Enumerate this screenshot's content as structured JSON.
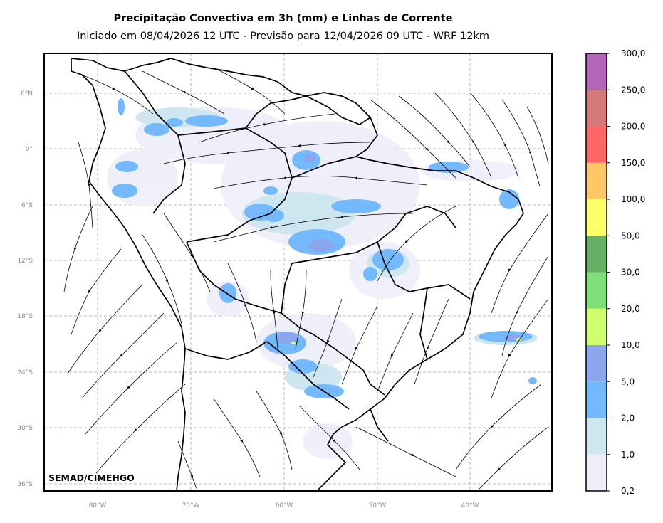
{
  "title": "Precipitação Convectiva em 3h (mm) e Linhas de Corrente",
  "subtitle": "Iniciado em 08/04/2026 12 UTC - Previsão para 12/04/2026 09 UTC - WRF 12km",
  "credit": "SEMAD/CIMEHGO",
  "lat_labels": [
    "6°N",
    "0°",
    "6°S",
    "12°S",
    "18°S",
    "24°S",
    "30°S",
    "36°S"
  ],
  "lon_labels": [
    "80°W",
    "70°W",
    "60°W",
    "50°W",
    "40°W"
  ],
  "colorbar": {
    "labels": [
      "0,2",
      "1,0",
      "2,0",
      "5,0",
      "10,0",
      "20,0",
      "30,0",
      "50,0",
      "100,0",
      "150,0",
      "200,0",
      "250,0",
      "300,0"
    ],
    "colors": [
      "#eeeefa",
      "#cde6f0",
      "#74b9fb",
      "#8ca6ee",
      "#cffe6e",
      "#7fe07a",
      "#66b066",
      "#ffff66",
      "#ffc766",
      "#ff6666",
      "#d57a7a",
      "#b266b8"
    ]
  }
}
